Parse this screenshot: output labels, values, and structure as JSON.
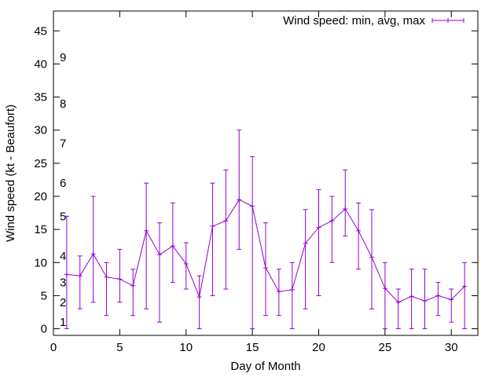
{
  "chart_data": {
    "type": "line",
    "title": "",
    "xlabel": "Day of Month",
    "ylabel": "Wind speed (kt - Beaufort)",
    "xlim": [
      0,
      32
    ],
    "ylim": [
      -1,
      48
    ],
    "xticks": [
      0,
      5,
      10,
      15,
      20,
      25,
      30
    ],
    "yticks": [
      0,
      5,
      10,
      15,
      20,
      25,
      30,
      35,
      40,
      45
    ],
    "grid": false,
    "legend_position": "top-right",
    "beaufort_labels": [
      {
        "label": "1",
        "y": 1
      },
      {
        "label": "2",
        "y": 4
      },
      {
        "label": "3",
        "y": 7
      },
      {
        "label": "4",
        "y": 11
      },
      {
        "label": "5",
        "y": 17
      },
      {
        "label": "6",
        "y": 22
      },
      {
        "label": "7",
        "y": 28
      },
      {
        "label": "8",
        "y": 34
      },
      {
        "label": "9",
        "y": 41
      }
    ],
    "series": [
      {
        "name": "Wind speed: min, avg, max",
        "color": "#9400d3",
        "x": [
          1,
          2,
          3,
          4,
          5,
          6,
          7,
          8,
          9,
          10,
          11,
          12,
          13,
          14,
          15,
          16,
          17,
          18,
          19,
          20,
          21,
          22,
          23,
          24,
          25,
          26,
          27,
          28,
          29,
          30,
          31
        ],
        "avg": [
          8.2,
          8,
          11.3,
          7.8,
          7.5,
          6.5,
          14.8,
          11.2,
          12.5,
          9.8,
          4.8,
          15.5,
          16.3,
          19.5,
          18.5,
          9.2,
          5.6,
          5.9,
          12.9,
          15.3,
          16.3,
          18.1,
          14.8,
          10.8,
          6.1,
          4,
          4.9,
          4.2,
          5,
          4.4,
          6.4
        ],
        "min": [
          0,
          3,
          4,
          2,
          4,
          2,
          3,
          1,
          7,
          6,
          0,
          5,
          6,
          12,
          0,
          2,
          2,
          0,
          3,
          5,
          10,
          14,
          9,
          3,
          0,
          0,
          0,
          0,
          2,
          1,
          0
        ],
        "max": [
          17,
          11,
          20,
          10,
          12,
          9,
          22,
          16,
          19,
          13,
          8,
          22,
          24,
          30,
          26,
          16,
          9,
          10,
          18,
          21,
          20,
          24,
          19,
          18,
          10,
          6,
          9,
          9,
          7,
          6,
          10
        ]
      }
    ]
  }
}
